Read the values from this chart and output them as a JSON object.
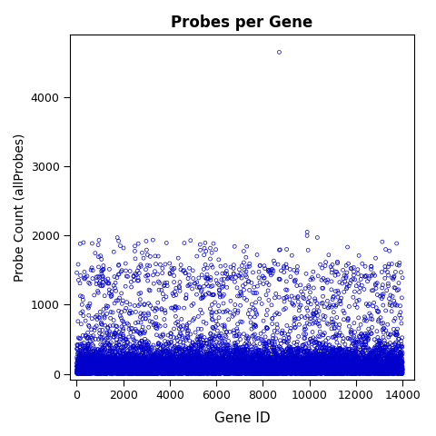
{
  "title": "Probes per Gene",
  "xlabel": "Gene ID",
  "ylabel": "Probe Count (allProbes)",
  "xlim": [
    -300,
    14500
  ],
  "ylim": [
    -80,
    4900
  ],
  "xticks": [
    0,
    2000,
    4000,
    6000,
    8000,
    10000,
    12000,
    14000
  ],
  "yticks": [
    0,
    1000,
    2000,
    3000,
    4000
  ],
  "n_genes": 14000,
  "marker_color": "#0000CC",
  "background_color": "#ffffff",
  "seed": 42
}
